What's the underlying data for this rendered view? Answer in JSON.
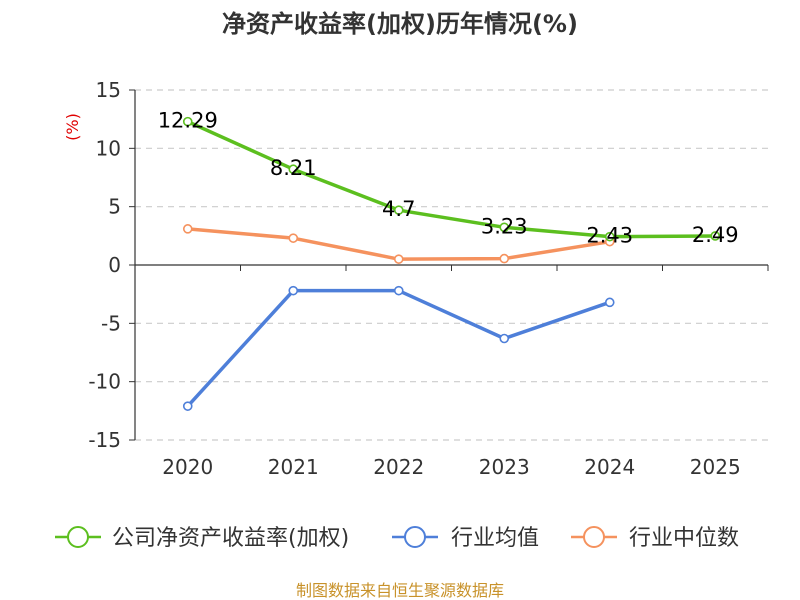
{
  "chart_data": {
    "type": "line",
    "title": "净资产收益率(加权)历年情况(%)",
    "ylabel": "(%)",
    "xlabel": "",
    "categories": [
      "2020",
      "2021",
      "2022",
      "2023",
      "2024",
      "2025"
    ],
    "ylim": [
      -15,
      15
    ],
    "yticks": [
      15,
      10,
      5,
      0,
      -5,
      -10,
      -15
    ],
    "grid": true,
    "legend_position": "bottom",
    "series": [
      {
        "name": "公司净资产收益率(加权)",
        "color": "#5cbf1f",
        "values": [
          12.29,
          8.21,
          4.7,
          3.23,
          2.43,
          2.49
        ],
        "labels": [
          "12.29",
          "8.21",
          "4.7",
          "3.23",
          "2.43",
          "2.49"
        ]
      },
      {
        "name": "行业均值",
        "color": "#4e7fd9",
        "values": [
          -12.1,
          -2.2,
          -2.2,
          -6.3,
          -3.2,
          null
        ]
      },
      {
        "name": "行业中位数",
        "color": "#f5925e",
        "values": [
          3.1,
          2.3,
          0.5,
          0.55,
          2.0,
          null
        ]
      }
    ]
  },
  "source": "制图数据来自恒生聚源数据库"
}
